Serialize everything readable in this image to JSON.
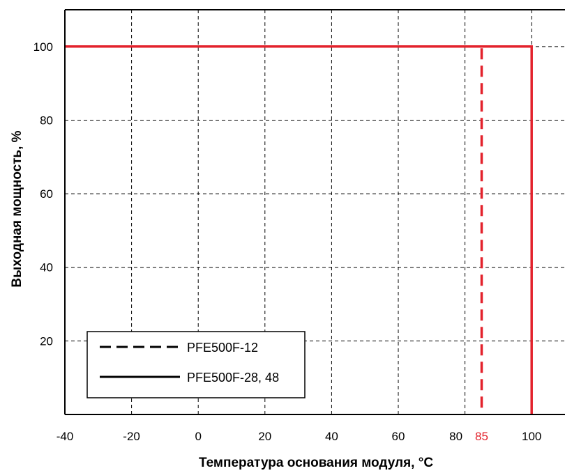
{
  "chart_data": {
    "type": "line",
    "title": "",
    "xlabel": "Температура основания модуля, °C",
    "ylabel": "Выходная мощность, %",
    "xlim": [
      -40,
      110
    ],
    "ylim": [
      0,
      110
    ],
    "grid": true,
    "x_ticks": [
      -40,
      -20,
      0,
      20,
      40,
      60,
      80,
      100
    ],
    "x_ticks_extra": [
      {
        "value": 85,
        "label": "85",
        "color": "#e3222c"
      }
    ],
    "y_ticks": [
      20,
      40,
      60,
      80,
      100
    ],
    "series": [
      {
        "name": "PFE500F-12",
        "style": "dashed",
        "color": "#e3222c",
        "x": [
          -40,
          85,
          85
        ],
        "y": [
          100,
          100,
          0
        ]
      },
      {
        "name": "PFE500F-28, 48",
        "style": "solid",
        "color": "#e3222c",
        "x": [
          -40,
          100,
          100
        ],
        "y": [
          100,
          100,
          0
        ]
      }
    ],
    "legend": {
      "placement": "bottom-left",
      "entries": [
        {
          "label": "PFE500F-12",
          "style": "dashed"
        },
        {
          "label": "PFE500F-28, 48",
          "style": "solid"
        }
      ]
    }
  }
}
